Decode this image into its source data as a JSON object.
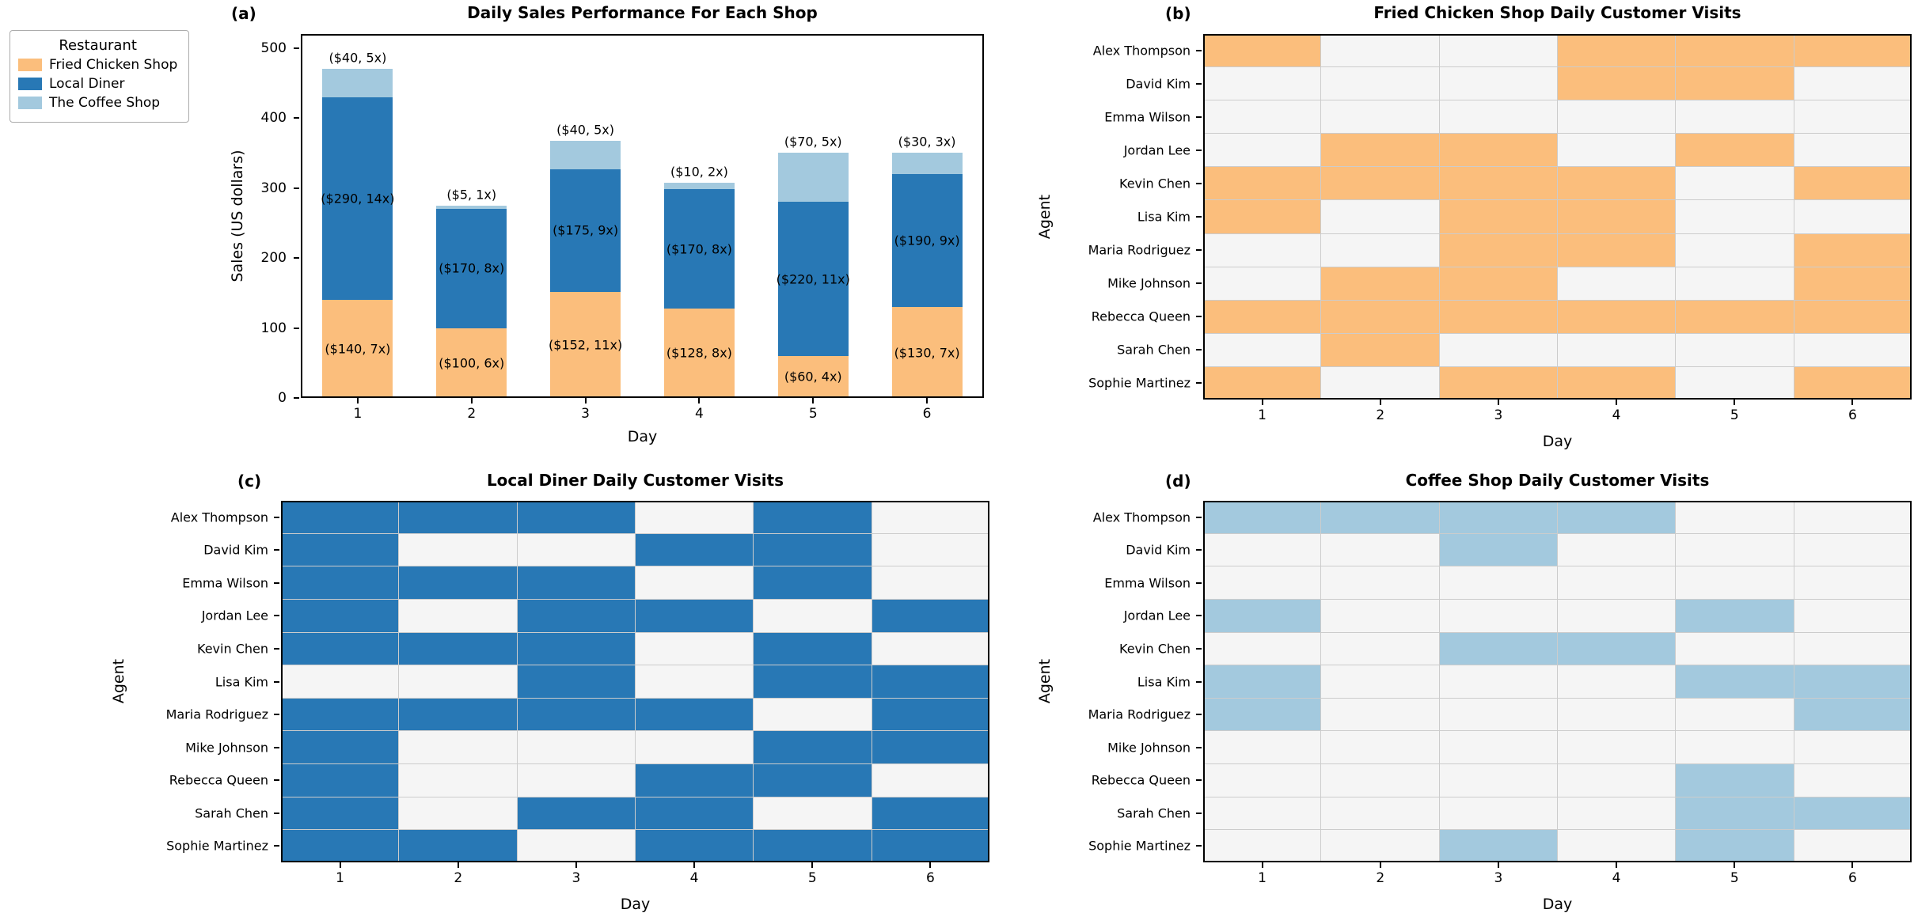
{
  "panels": {
    "a": {
      "tag": "(a)"
    },
    "b": {
      "tag": "(b)"
    },
    "c": {
      "tag": "(c)"
    },
    "d": {
      "tag": "(d)"
    }
  },
  "legend": {
    "title": "Restaurant",
    "entries": [
      {
        "label": "Fried Chicken Shop",
        "color": "#FBBE7C"
      },
      {
        "label": "Local Diner",
        "color": "#2878B5"
      },
      {
        "label": "The Coffee Shop",
        "color": "#A3C9DE"
      }
    ]
  },
  "colors": {
    "fried_chicken": "#FBBE7C",
    "local_diner": "#2878B5",
    "coffee_shop": "#A3C9DE",
    "heatmap_off": "#F5F5F5",
    "grid_line": "#CCCCCC",
    "spine": "#000000"
  },
  "agents": [
    "Alex Thompson",
    "David Kim",
    "Emma Wilson",
    "Jordan Lee",
    "Kevin Chen",
    "Lisa Kim",
    "Maria Rodriguez",
    "Mike Johnson",
    "Rebecca Queen",
    "Sarah Chen",
    "Sophie Martinez"
  ],
  "days": [
    "1",
    "2",
    "3",
    "4",
    "5",
    "6"
  ],
  "chart_data": [
    {
      "panel": "a",
      "type": "bar",
      "stacked": true,
      "title": "Daily Sales Performance For Each Shop",
      "xlabel": "Day",
      "ylabel": "Sales (US dollars)",
      "categories": [
        "1",
        "2",
        "3",
        "4",
        "5",
        "6"
      ],
      "yticks": [
        0,
        100,
        200,
        300,
        400,
        500
      ],
      "ylim": [
        0,
        520
      ],
      "legend_position": "outside upper left",
      "grid": false,
      "series": [
        {
          "name": "Fried Chicken Shop",
          "color": "#FBBE7C",
          "label_placement": "center",
          "values": [
            140,
            100,
            152,
            128,
            60,
            130
          ],
          "labels": [
            "($140, 7x)",
            "($100, 6x)",
            "($152, 11x)",
            "($128, 8x)",
            "($60, 4x)",
            "($130, 7x)"
          ]
        },
        {
          "name": "Local Diner",
          "color": "#2878B5",
          "label_placement": "center",
          "values": [
            290,
            170,
            175,
            170,
            220,
            190
          ],
          "labels": [
            "($290, 14x)",
            "($170, 8x)",
            "($175, 9x)",
            "($170, 8x)",
            "($220, 11x)",
            "($190, 9x)"
          ]
        },
        {
          "name": "The Coffee Shop",
          "color": "#A3C9DE",
          "label_placement": "above",
          "values": [
            40,
            5,
            40,
            10,
            70,
            30
          ],
          "labels": [
            "($40, 5x)",
            "($5, 1x)",
            "($40, 5x)",
            "($10, 2x)",
            "($70, 5x)",
            "($30, 3x)"
          ]
        }
      ],
      "totals": [
        470,
        275,
        367,
        308,
        350,
        350
      ]
    },
    {
      "panel": "b",
      "type": "heatmap",
      "title": "Fried Chicken Shop Daily Customer Visits",
      "xlabel": "Day",
      "ylabel": "Agent",
      "x": [
        "1",
        "2",
        "3",
        "4",
        "5",
        "6"
      ],
      "agents": [
        "Alex Thompson",
        "David Kim",
        "Emma Wilson",
        "Jordan Lee",
        "Kevin Chen",
        "Lisa Kim",
        "Maria Rodriguez",
        "Mike Johnson",
        "Rebecca Queen",
        "Sarah Chen",
        "Sophie Martinez"
      ],
      "on_color": "#FBBE7C",
      "off_color": "#F5F5F5",
      "matrix": [
        [
          1,
          0,
          0,
          1,
          1,
          1
        ],
        [
          0,
          0,
          0,
          1,
          1,
          0
        ],
        [
          0,
          0,
          0,
          0,
          0,
          0
        ],
        [
          0,
          1,
          1,
          0,
          1,
          0
        ],
        [
          1,
          1,
          1,
          1,
          0,
          1
        ],
        [
          1,
          0,
          1,
          1,
          0,
          0
        ],
        [
          0,
          0,
          1,
          1,
          0,
          1
        ],
        [
          0,
          1,
          1,
          0,
          0,
          1
        ],
        [
          1,
          1,
          1,
          1,
          1,
          1
        ],
        [
          0,
          1,
          0,
          0,
          0,
          0
        ],
        [
          1,
          0,
          1,
          1,
          0,
          1
        ]
      ]
    },
    {
      "panel": "c",
      "type": "heatmap",
      "title": "Local Diner Daily Customer Visits",
      "xlabel": "Day",
      "ylabel": "Agent",
      "x": [
        "1",
        "2",
        "3",
        "4",
        "5",
        "6"
      ],
      "agents": [
        "Alex Thompson",
        "David Kim",
        "Emma Wilson",
        "Jordan Lee",
        "Kevin Chen",
        "Lisa Kim",
        "Maria Rodriguez",
        "Mike Johnson",
        "Rebecca Queen",
        "Sarah Chen",
        "Sophie Martinez"
      ],
      "on_color": "#2878B5",
      "off_color": "#F5F5F5",
      "matrix": [
        [
          1,
          1,
          1,
          0,
          1,
          0
        ],
        [
          1,
          0,
          0,
          1,
          1,
          0
        ],
        [
          1,
          1,
          1,
          0,
          1,
          0
        ],
        [
          1,
          0,
          1,
          1,
          0,
          1
        ],
        [
          1,
          1,
          1,
          0,
          1,
          0
        ],
        [
          0,
          0,
          1,
          0,
          1,
          1
        ],
        [
          1,
          1,
          1,
          1,
          0,
          1
        ],
        [
          1,
          0,
          0,
          0,
          1,
          1
        ],
        [
          1,
          0,
          0,
          1,
          1,
          0
        ],
        [
          1,
          0,
          1,
          1,
          0,
          1
        ],
        [
          1,
          1,
          0,
          1,
          1,
          1
        ]
      ]
    },
    {
      "panel": "d",
      "type": "heatmap",
      "title": "Coffee Shop Daily Customer Visits",
      "xlabel": "Day",
      "ylabel": "Agent",
      "x": [
        "1",
        "2",
        "3",
        "4",
        "5",
        "6"
      ],
      "agents": [
        "Alex Thompson",
        "David Kim",
        "Emma Wilson",
        "Jordan Lee",
        "Kevin Chen",
        "Lisa Kim",
        "Maria Rodriguez",
        "Mike Johnson",
        "Rebecca Queen",
        "Sarah Chen",
        "Sophie Martinez"
      ],
      "on_color": "#A3C9DE",
      "off_color": "#F5F5F5",
      "matrix": [
        [
          1,
          1,
          1,
          1,
          0,
          0
        ],
        [
          0,
          0,
          1,
          0,
          0,
          0
        ],
        [
          0,
          0,
          0,
          0,
          0,
          0
        ],
        [
          1,
          0,
          0,
          0,
          1,
          0
        ],
        [
          0,
          0,
          1,
          1,
          0,
          0
        ],
        [
          1,
          0,
          0,
          0,
          1,
          1
        ],
        [
          1,
          0,
          0,
          0,
          0,
          1
        ],
        [
          0,
          0,
          0,
          0,
          0,
          0
        ],
        [
          0,
          0,
          0,
          0,
          1,
          0
        ],
        [
          0,
          0,
          0,
          0,
          1,
          1
        ],
        [
          0,
          0,
          1,
          0,
          1,
          0
        ]
      ]
    }
  ]
}
